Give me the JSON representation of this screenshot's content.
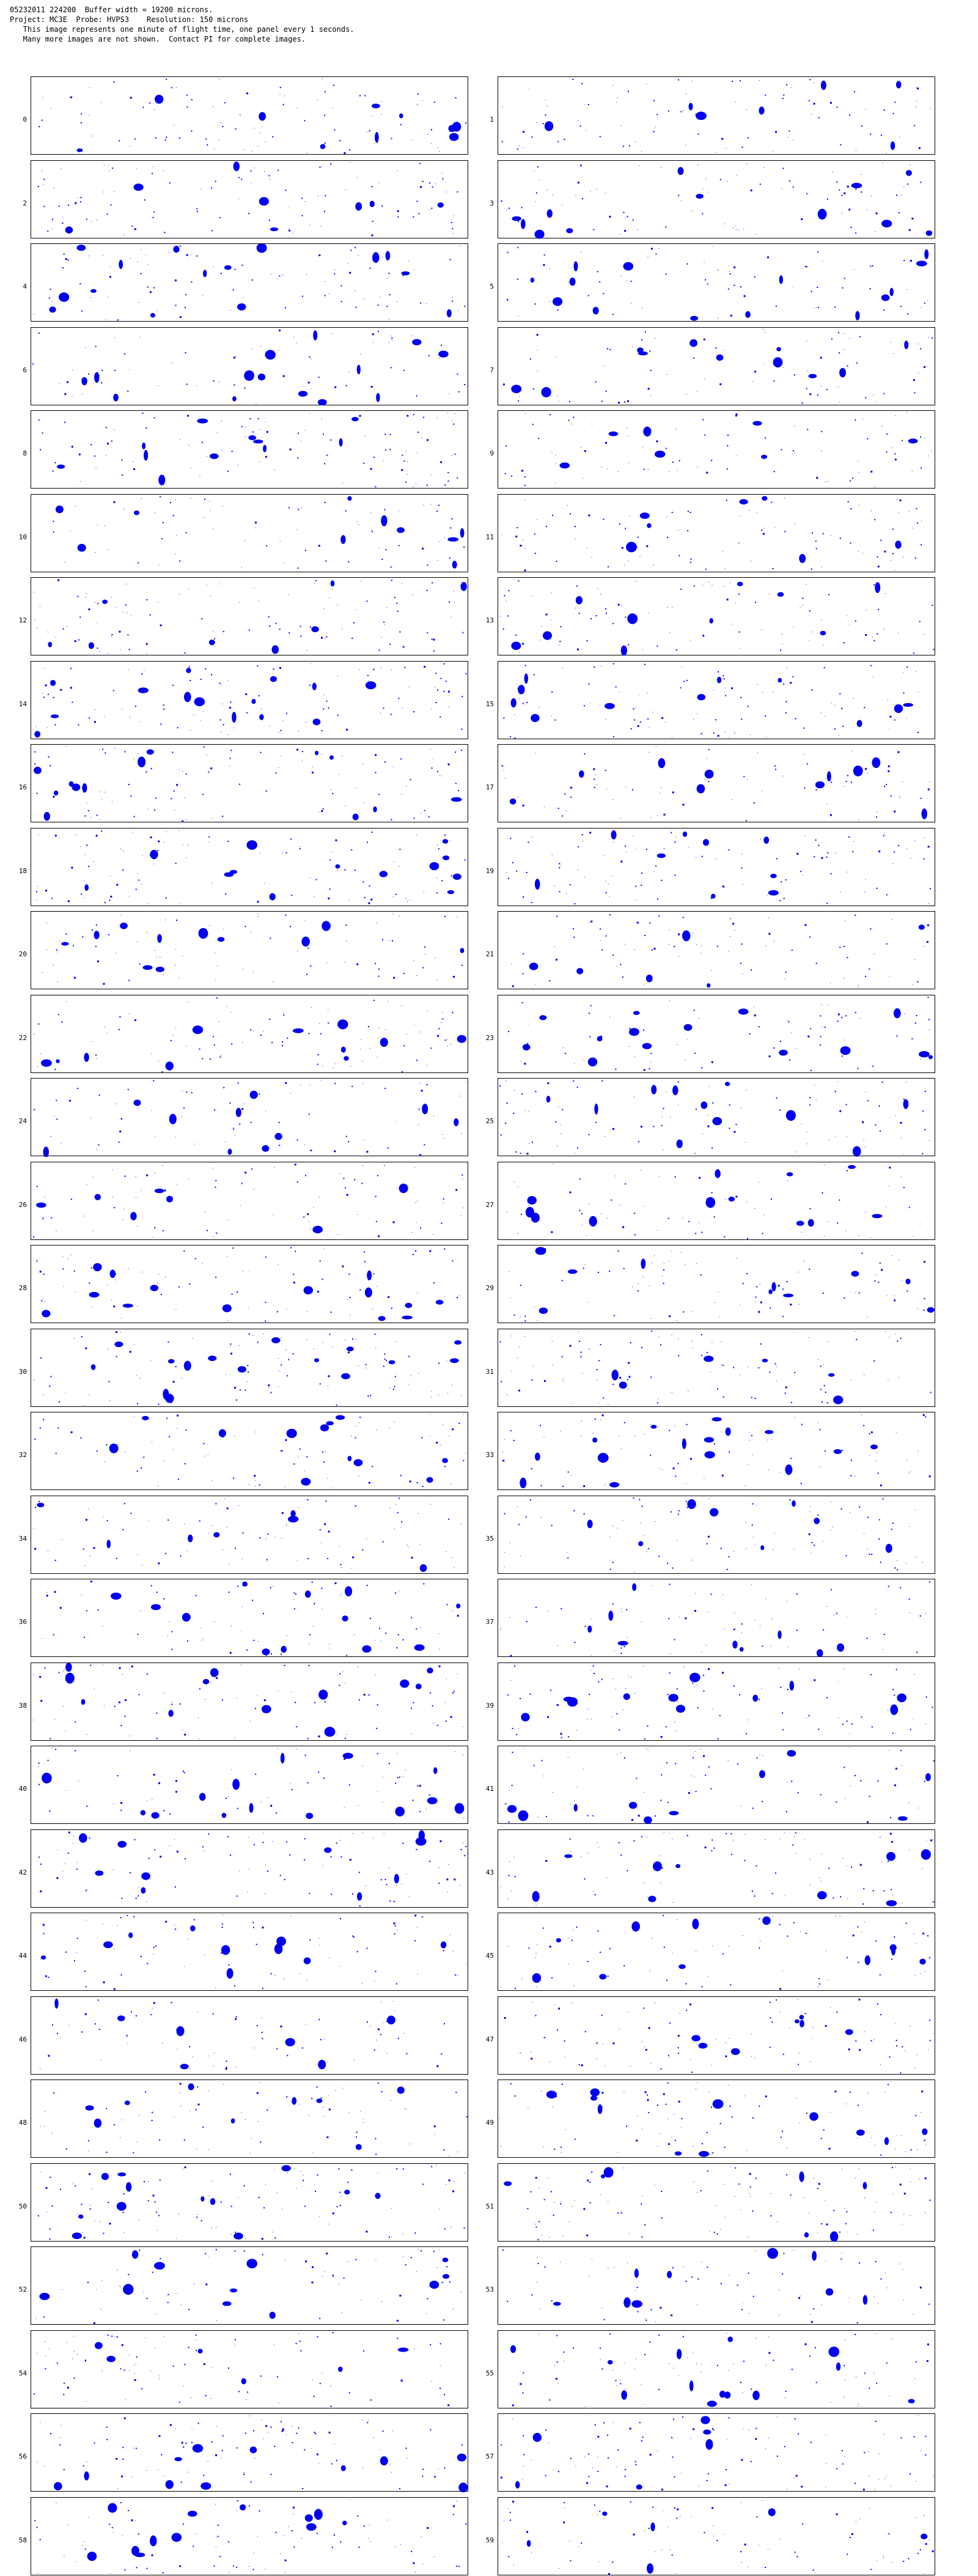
{
  "header": {
    "line1": "05232011 224200  Buffer width = 19200 microns.",
    "line2": "Project: MC3E  Probe: HVPS3    Resolution: 150 microns",
    "line3": "   This image represents one minute of flight time, one panel every 1 seconds.",
    "line4": "   Many more images are not shown.  Contact PI for complete images."
  },
  "particle_color": "#0000ee",
  "panels": [
    {
      "label": "0"
    },
    {
      "label": "1"
    },
    {
      "label": "2"
    },
    {
      "label": "3"
    },
    {
      "label": "4"
    },
    {
      "label": "5"
    },
    {
      "label": "6"
    },
    {
      "label": "7"
    },
    {
      "label": "8"
    },
    {
      "label": "9"
    },
    {
      "label": "10"
    },
    {
      "label": "11"
    },
    {
      "label": "12"
    },
    {
      "label": "13"
    },
    {
      "label": "14"
    },
    {
      "label": "15"
    },
    {
      "label": "16"
    },
    {
      "label": "17"
    },
    {
      "label": "18"
    },
    {
      "label": "19"
    },
    {
      "label": "20"
    },
    {
      "label": "21"
    },
    {
      "label": "22"
    },
    {
      "label": "23"
    },
    {
      "label": "24"
    },
    {
      "label": "25"
    },
    {
      "label": "26"
    },
    {
      "label": "27"
    },
    {
      "label": "28"
    },
    {
      "label": "29"
    },
    {
      "label": "30"
    },
    {
      "label": "31"
    },
    {
      "label": "32"
    },
    {
      "label": "33"
    },
    {
      "label": "34"
    },
    {
      "label": "35"
    },
    {
      "label": "36"
    },
    {
      "label": "37"
    },
    {
      "label": "38"
    },
    {
      "label": "39"
    },
    {
      "label": "40"
    },
    {
      "label": "41"
    },
    {
      "label": "42"
    },
    {
      "label": "43"
    },
    {
      "label": "44"
    },
    {
      "label": "45"
    },
    {
      "label": "46"
    },
    {
      "label": "47"
    },
    {
      "label": "48"
    },
    {
      "label": "49"
    },
    {
      "label": "50"
    },
    {
      "label": "51"
    },
    {
      "label": "52"
    },
    {
      "label": "53"
    },
    {
      "label": "54"
    },
    {
      "label": "55"
    },
    {
      "label": "56"
    },
    {
      "label": "57"
    },
    {
      "label": "58"
    },
    {
      "label": "59"
    }
  ]
}
